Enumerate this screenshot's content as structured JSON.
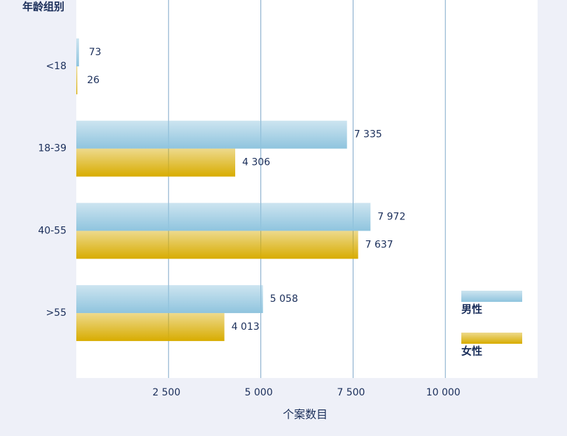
{
  "chart_data": {
    "type": "bar",
    "orientation": "horizontal",
    "y_axis_title": "年龄组别",
    "x_axis_title": "个案数目",
    "categories": [
      "<18",
      "18-39",
      "40-55",
      ">55"
    ],
    "series": [
      {
        "name": "男性",
        "color": "#8fc4de",
        "values": [
          73,
          7335,
          7972,
          5058
        ],
        "value_labels": [
          "73",
          "7 335",
          "7 972",
          "5 058"
        ]
      },
      {
        "name": "女性",
        "color": "#d8ac00",
        "values": [
          26,
          4306,
          7637,
          4013
        ],
        "value_labels": [
          "26",
          "4 306",
          "7 637",
          "4 013"
        ]
      }
    ],
    "xlim": [
      0,
      12500
    ],
    "xticks": [
      {
        "value": 2500,
        "label": "2 500"
      },
      {
        "value": 5000,
        "label": "5 000"
      },
      {
        "value": 7500,
        "label": "7 500"
      },
      {
        "value": 10000,
        "label": "10  000"
      }
    ],
    "grid": true,
    "legend": "right"
  }
}
